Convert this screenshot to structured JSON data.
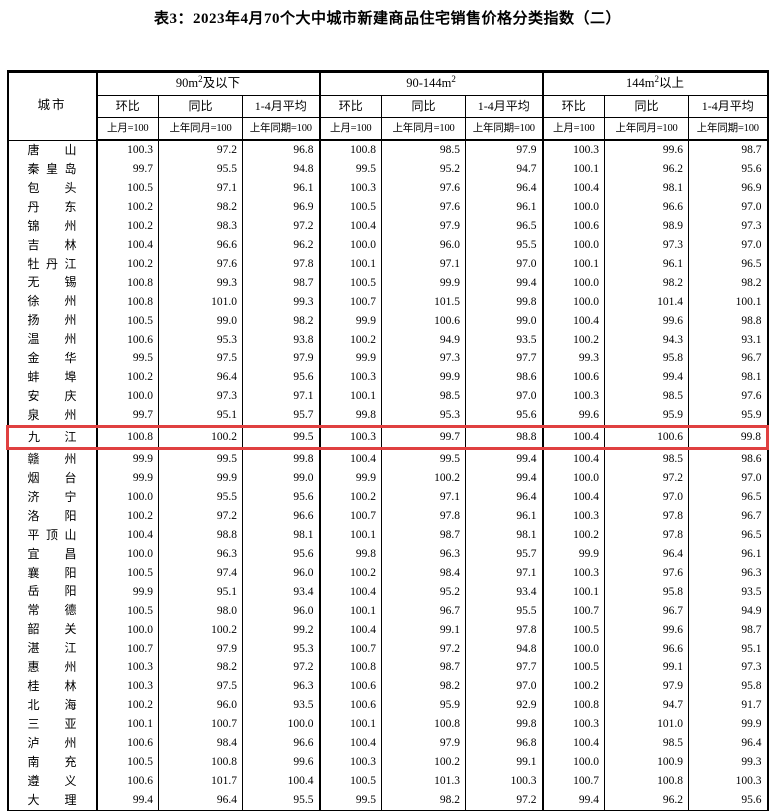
{
  "title": "表3：2023年4月70个大中城市新建商品住宅销售价格分类指数（二）",
  "highlight": {
    "color": "#e04040",
    "city": "九江"
  },
  "table": {
    "city_header": "城市",
    "groups": [
      {
        "pre": "90m",
        "sup": "2",
        "post": "及以下"
      },
      {
        "pre": "90-144m",
        "sup": "2",
        "post": ""
      },
      {
        "pre": "144m",
        "sup": "2",
        "post": "以上"
      }
    ],
    "sub_headers": [
      "环比",
      "同比",
      "1-4月平均"
    ],
    "unit_headers": [
      "上月=100",
      "上年同月=100",
      "上年同期=100"
    ],
    "rows": [
      {
        "city": "唐山",
        "values": [
          "100.3",
          "97.2",
          "96.8",
          "100.8",
          "98.5",
          "97.9",
          "100.3",
          "99.6",
          "98.7"
        ]
      },
      {
        "city": "秦皇岛",
        "values": [
          "99.7",
          "95.5",
          "94.8",
          "99.5",
          "95.2",
          "94.7",
          "100.1",
          "96.2",
          "95.6"
        ]
      },
      {
        "city": "包头",
        "values": [
          "100.5",
          "97.1",
          "96.1",
          "100.3",
          "97.6",
          "96.4",
          "100.4",
          "98.1",
          "96.9"
        ]
      },
      {
        "city": "丹东",
        "values": [
          "100.2",
          "98.2",
          "96.9",
          "100.5",
          "97.6",
          "96.1",
          "100.0",
          "96.6",
          "97.0"
        ]
      },
      {
        "city": "锦州",
        "values": [
          "100.2",
          "98.3",
          "97.2",
          "100.4",
          "97.9",
          "96.5",
          "100.6",
          "98.9",
          "97.3"
        ]
      },
      {
        "city": "吉林",
        "values": [
          "100.4",
          "96.6",
          "96.2",
          "100.0",
          "96.0",
          "95.5",
          "100.0",
          "97.3",
          "97.0"
        ]
      },
      {
        "city": "牡丹江",
        "values": [
          "100.2",
          "97.6",
          "97.8",
          "100.1",
          "97.1",
          "97.0",
          "100.1",
          "96.1",
          "96.5"
        ]
      },
      {
        "city": "无锡",
        "values": [
          "100.8",
          "99.3",
          "98.7",
          "100.5",
          "99.9",
          "99.4",
          "100.0",
          "98.2",
          "98.2"
        ]
      },
      {
        "city": "徐州",
        "values": [
          "100.8",
          "101.0",
          "99.3",
          "100.7",
          "101.5",
          "99.8",
          "100.0",
          "101.4",
          "100.1"
        ]
      },
      {
        "city": "扬州",
        "values": [
          "100.5",
          "99.0",
          "98.2",
          "99.9",
          "100.6",
          "99.0",
          "100.4",
          "99.6",
          "98.8"
        ]
      },
      {
        "city": "温州",
        "values": [
          "100.6",
          "95.3",
          "93.8",
          "100.2",
          "94.9",
          "93.5",
          "100.2",
          "94.3",
          "93.1"
        ]
      },
      {
        "city": "金华",
        "values": [
          "99.5",
          "97.5",
          "97.9",
          "99.9",
          "97.3",
          "97.7",
          "99.3",
          "95.8",
          "96.7"
        ]
      },
      {
        "city": "蚌埠",
        "values": [
          "100.2",
          "96.4",
          "95.6",
          "100.3",
          "99.9",
          "98.6",
          "100.6",
          "99.4",
          "98.1"
        ]
      },
      {
        "city": "安庆",
        "values": [
          "100.0",
          "97.3",
          "97.1",
          "100.1",
          "98.5",
          "97.0",
          "100.3",
          "98.5",
          "97.6"
        ]
      },
      {
        "city": "泉州",
        "values": [
          "99.7",
          "95.1",
          "95.7",
          "99.8",
          "95.3",
          "95.6",
          "99.6",
          "95.9",
          "95.9"
        ]
      },
      {
        "city": "九江",
        "highlight": true,
        "values": [
          "100.8",
          "100.2",
          "99.5",
          "100.3",
          "99.7",
          "98.8",
          "100.4",
          "100.6",
          "99.8"
        ]
      },
      {
        "city": "赣州",
        "values": [
          "99.9",
          "99.5",
          "99.8",
          "100.4",
          "99.5",
          "99.4",
          "100.4",
          "98.5",
          "98.6"
        ]
      },
      {
        "city": "烟台",
        "values": [
          "99.9",
          "99.9",
          "99.0",
          "99.9",
          "100.2",
          "99.4",
          "100.0",
          "97.2",
          "97.0"
        ]
      },
      {
        "city": "济宁",
        "values": [
          "100.0",
          "95.5",
          "95.6",
          "100.2",
          "97.1",
          "96.4",
          "100.4",
          "97.0",
          "96.5"
        ]
      },
      {
        "city": "洛阳",
        "values": [
          "100.2",
          "97.2",
          "96.6",
          "100.7",
          "97.8",
          "96.1",
          "100.3",
          "97.8",
          "96.7"
        ]
      },
      {
        "city": "平顶山",
        "values": [
          "100.4",
          "98.8",
          "98.1",
          "100.1",
          "98.7",
          "98.1",
          "100.2",
          "97.8",
          "96.5"
        ]
      },
      {
        "city": "宜昌",
        "values": [
          "100.0",
          "96.3",
          "95.6",
          "99.8",
          "96.3",
          "95.7",
          "99.9",
          "96.4",
          "96.1"
        ]
      },
      {
        "city": "襄阳",
        "values": [
          "100.5",
          "97.4",
          "96.0",
          "100.2",
          "98.4",
          "97.1",
          "100.3",
          "97.6",
          "96.3"
        ]
      },
      {
        "city": "岳阳",
        "values": [
          "99.9",
          "95.1",
          "93.4",
          "100.4",
          "95.2",
          "93.4",
          "100.1",
          "95.8",
          "93.5"
        ]
      },
      {
        "city": "常德",
        "values": [
          "100.5",
          "98.0",
          "96.0",
          "100.1",
          "96.7",
          "95.5",
          "100.7",
          "96.7",
          "94.9"
        ]
      },
      {
        "city": "韶关",
        "values": [
          "100.0",
          "100.2",
          "99.2",
          "100.4",
          "99.1",
          "97.8",
          "100.5",
          "99.6",
          "98.7"
        ]
      },
      {
        "city": "湛江",
        "values": [
          "100.7",
          "97.9",
          "95.3",
          "100.7",
          "97.2",
          "94.8",
          "100.0",
          "96.6",
          "95.1"
        ]
      },
      {
        "city": "惠州",
        "values": [
          "100.3",
          "98.2",
          "97.2",
          "100.8",
          "98.7",
          "97.7",
          "100.5",
          "99.1",
          "97.3"
        ]
      },
      {
        "city": "桂林",
        "values": [
          "100.3",
          "97.5",
          "96.3",
          "100.6",
          "98.2",
          "97.0",
          "100.2",
          "97.9",
          "95.8"
        ]
      },
      {
        "city": "北海",
        "values": [
          "100.2",
          "96.0",
          "93.5",
          "100.6",
          "95.9",
          "92.9",
          "100.8",
          "94.7",
          "91.7"
        ]
      },
      {
        "city": "三亚",
        "values": [
          "100.1",
          "100.7",
          "100.0",
          "100.1",
          "100.8",
          "99.8",
          "100.3",
          "101.0",
          "99.9"
        ]
      },
      {
        "city": "泸州",
        "values": [
          "100.6",
          "98.4",
          "96.6",
          "100.4",
          "97.9",
          "96.8",
          "100.4",
          "98.5",
          "96.4"
        ]
      },
      {
        "city": "南充",
        "values": [
          "100.5",
          "100.8",
          "99.6",
          "100.3",
          "100.2",
          "99.1",
          "100.0",
          "100.9",
          "99.3"
        ]
      },
      {
        "city": "遵义",
        "values": [
          "100.6",
          "101.7",
          "100.4",
          "100.5",
          "101.3",
          "100.3",
          "100.7",
          "100.8",
          "100.3"
        ]
      },
      {
        "city": "大理",
        "values": [
          "99.4",
          "96.4",
          "95.5",
          "99.5",
          "98.2",
          "97.2",
          "99.4",
          "96.2",
          "95.6"
        ]
      }
    ]
  }
}
